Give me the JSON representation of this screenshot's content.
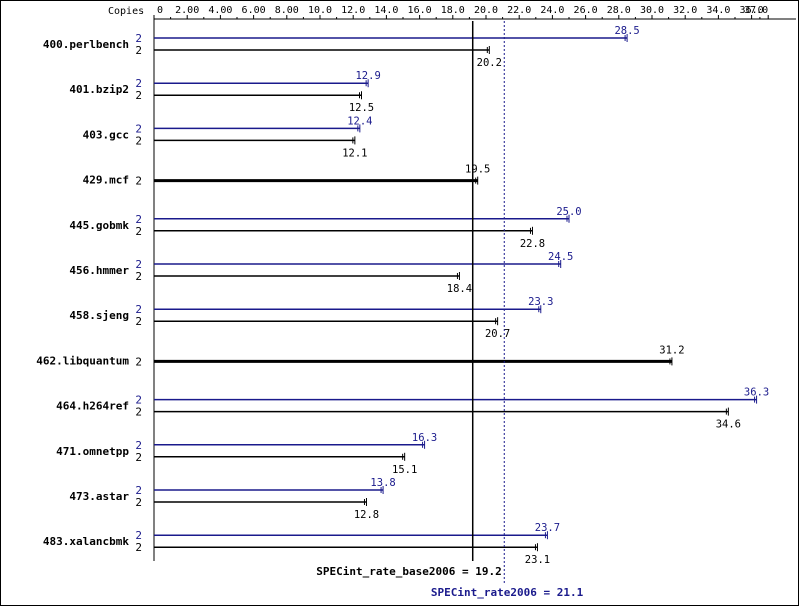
{
  "chart_data": {
    "type": "bar",
    "orientation": "horizontal",
    "axis_label": "Copies",
    "xlim": [
      0,
      37.0
    ],
    "ticks": [
      0,
      2,
      4,
      6,
      8,
      10,
      12,
      14,
      16,
      18,
      20,
      22,
      24,
      26,
      28,
      30,
      32,
      34,
      36,
      37
    ],
    "tick_labels": [
      "0",
      "2.00",
      "4.00",
      "6.00",
      "8.00",
      "10.0",
      "12.0",
      "14.0",
      "16.0",
      "18.0",
      "20.0",
      "22.0",
      "24.0",
      "26.0",
      "28.0",
      "30.0",
      "32.0",
      "34.0",
      "36.0",
      "37.0"
    ],
    "colors": {
      "peak": "#1a1a8c",
      "base": "#000000"
    },
    "benchmarks": [
      {
        "name": "400.perlbench",
        "peak": 28.5,
        "base": 20.2,
        "peak_copies": "2",
        "base_copies": "2",
        "peak_label": "28.5",
        "base_label": "20.2"
      },
      {
        "name": "401.bzip2",
        "peak": 12.9,
        "base": 12.5,
        "peak_copies": "2",
        "base_copies": "2",
        "peak_label": "12.9",
        "base_label": "12.5"
      },
      {
        "name": "403.gcc",
        "peak": 12.4,
        "base": 12.1,
        "peak_copies": "2",
        "base_copies": "2",
        "peak_label": "12.4",
        "base_label": "12.1"
      },
      {
        "name": "429.mcf",
        "combined": 19.5,
        "copies": "2",
        "label": "19.5"
      },
      {
        "name": "445.gobmk",
        "peak": 25.0,
        "base": 22.8,
        "peak_copies": "2",
        "base_copies": "2",
        "peak_label": "25.0",
        "base_label": "22.8"
      },
      {
        "name": "456.hmmer",
        "peak": 24.5,
        "base": 18.4,
        "peak_copies": "2",
        "base_copies": "2",
        "peak_label": "24.5",
        "base_label": "18.4"
      },
      {
        "name": "458.sjeng",
        "peak": 23.3,
        "base": 20.7,
        "peak_copies": "2",
        "base_copies": "2",
        "peak_label": "23.3",
        "base_label": "20.7"
      },
      {
        "name": "462.libquantum",
        "combined": 31.2,
        "copies": "2",
        "label": "31.2"
      },
      {
        "name": "464.h264ref",
        "peak": 36.3,
        "base": 34.6,
        "peak_copies": "2",
        "base_copies": "2",
        "peak_label": "36.3",
        "base_label": "34.6"
      },
      {
        "name": "471.omnetpp",
        "peak": 16.3,
        "base": 15.1,
        "peak_copies": "2",
        "base_copies": "2",
        "peak_label": "16.3",
        "base_label": "15.1"
      },
      {
        "name": "473.astar",
        "peak": 13.8,
        "base": 12.8,
        "peak_copies": "2",
        "base_copies": "2",
        "peak_label": "13.8",
        "base_label": "12.8"
      },
      {
        "name": "483.xalancbmk",
        "peak": 23.7,
        "base": 23.1,
        "peak_copies": "2",
        "base_copies": "2",
        "peak_label": "23.7",
        "base_label": "23.1"
      }
    ],
    "base_summary": {
      "label": "SPECint_rate_base2006 = 19.2",
      "value": 19.2
    },
    "peak_summary": {
      "label": "SPECint_rate2006 = 21.1",
      "value": 21.1
    }
  }
}
